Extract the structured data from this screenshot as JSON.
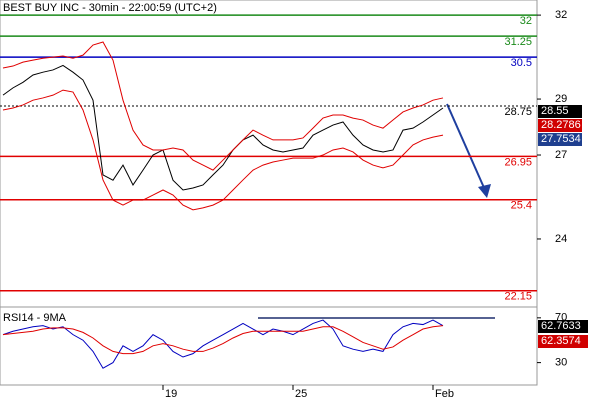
{
  "chart_data": [
    {
      "type": "price",
      "title": "BEST BUY INC - 30min - 22:00:59 (UTC+2)",
      "ylim": [
        21.64,
        32.54
      ],
      "yticks": [
        32,
        29,
        27,
        24
      ],
      "categories": [
        null,
        null,
        null,
        null,
        null,
        null,
        null,
        null,
        null,
        null,
        null,
        null,
        null,
        null,
        null,
        null,
        "19",
        null,
        null,
        null,
        null,
        null,
        null,
        null,
        null,
        null,
        null,
        null,
        null,
        "25",
        null,
        null,
        null,
        null,
        null,
        null,
        null,
        null,
        null,
        null,
        null,
        null,
        null,
        "Feb",
        null
      ],
      "series": [
        {
          "color": "#000000",
          "values": [
            29.14,
            29.4,
            29.6,
            29.86,
            29.96,
            30.04,
            30.2,
            29.96,
            29.68,
            28.96,
            26.29,
            26.1,
            26.64,
            25.93,
            26.46,
            27.0,
            27.18,
            26.1,
            25.75,
            25.82,
            25.93,
            26.29,
            26.64,
            27.18,
            27.54,
            27.71,
            27.36,
            27.18,
            27.11,
            27.18,
            27.25,
            27.71,
            27.89,
            28.07,
            28.18,
            27.71,
            27.36,
            27.18,
            27.11,
            27.18,
            27.89,
            27.96,
            28.18,
            28.43,
            28.68
          ]
        },
        {
          "color": "#e00000",
          "values": [
            30.11,
            30.18,
            30.32,
            30.39,
            30.46,
            30.5,
            30.54,
            30.46,
            30.57,
            30.93,
            31.04,
            30.39,
            28.96,
            27.89,
            27.36,
            27.18,
            27.18,
            27.25,
            27.18,
            26.82,
            26.64,
            26.46,
            26.82,
            27.18,
            27.54,
            27.89,
            27.71,
            27.54,
            27.54,
            27.54,
            27.61,
            27.96,
            28.32,
            28.43,
            28.43,
            28.32,
            28.25,
            28.07,
            27.96,
            28.25,
            28.54,
            28.68,
            28.79,
            28.96,
            29.04
          ]
        },
        {
          "color": "#e00000",
          "values": [
            28.61,
            28.68,
            28.79,
            28.96,
            29.04,
            29.14,
            29.32,
            29.25,
            28.61,
            27.54,
            26.11,
            25.39,
            25.21,
            25.39,
            25.39,
            25.57,
            25.75,
            25.57,
            25.21,
            25.04,
            25.11,
            25.21,
            25.39,
            25.75,
            26.11,
            26.46,
            26.64,
            26.75,
            26.82,
            26.89,
            26.89,
            26.89,
            27.0,
            27.18,
            27.25,
            27.11,
            26.82,
            26.64,
            26.54,
            26.64,
            27.0,
            27.36,
            27.54,
            27.64,
            27.71
          ]
        }
      ],
      "levels": [
        {
          "value": 32,
          "label": "32",
          "color": "#1a8a1a",
          "dash": false
        },
        {
          "value": 31.25,
          "label": "31.25",
          "color": "#1a8a1a",
          "dash": false
        },
        {
          "value": 30.5,
          "label": "30.5",
          "color": "#0000c0",
          "dash": false
        },
        {
          "value": 28.75,
          "label": "28.75",
          "color": "#000000",
          "dash": true
        },
        {
          "value": 26.95,
          "label": "26.95",
          "color": "#e00000",
          "dash": false
        },
        {
          "value": 25.4,
          "label": "25.4",
          "color": "#e00000",
          "dash": false
        },
        {
          "value": 22.15,
          "label": "22.15",
          "color": "#e00000",
          "dash": false
        }
      ],
      "tags": [
        {
          "label": "28.55",
          "color": "#000000"
        },
        {
          "label": "28.2786",
          "color": "#d00000"
        },
        {
          "label": "27.7534",
          "color": "#1f3f8f"
        }
      ]
    },
    {
      "type": "rsi",
      "title": "RSI14 - 9MA",
      "ylim": [
        10,
        77
      ],
      "yticks": [
        70,
        30
      ],
      "series": [
        {
          "color": "#0000c0",
          "values": [
            55,
            58,
            60,
            62,
            63,
            60,
            62,
            55,
            50,
            40,
            25,
            30,
            45,
            40,
            45,
            55,
            50,
            40,
            35,
            38,
            45,
            50,
            55,
            60,
            65,
            60,
            55,
            60,
            58,
            55,
            60,
            65,
            68,
            60,
            45,
            42,
            40,
            42,
            40,
            55,
            62,
            65,
            64,
            68,
            63
          ]
        },
        {
          "color": "#e00000",
          "values": [
            55,
            56,
            57,
            58,
            60,
            61,
            61,
            60,
            57,
            52,
            45,
            40,
            38,
            38,
            40,
            45,
            47,
            45,
            42,
            40,
            40,
            43,
            47,
            52,
            56,
            58,
            58,
            58,
            58,
            58,
            58,
            60,
            62,
            62,
            58,
            53,
            48,
            45,
            42,
            44,
            50,
            55,
            60,
            62,
            63
          ]
        }
      ],
      "tags": [
        {
          "label": "62.7633",
          "color": "#000000"
        },
        {
          "label": "62.3574",
          "color": "#d00000"
        }
      ]
    }
  ]
}
